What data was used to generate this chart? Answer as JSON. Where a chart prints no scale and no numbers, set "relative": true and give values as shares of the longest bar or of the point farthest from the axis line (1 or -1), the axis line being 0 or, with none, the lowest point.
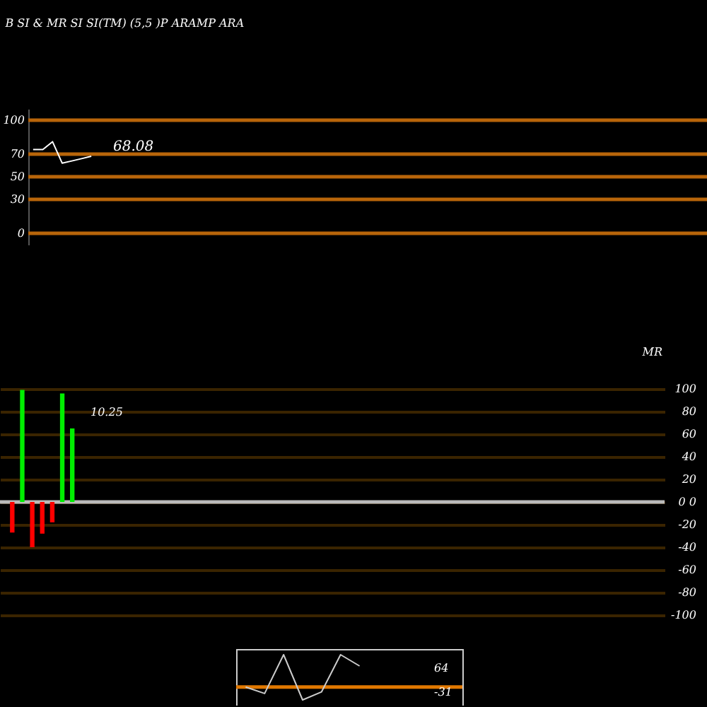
{
  "chart_data": [
    {
      "type": "line",
      "title": "B SI & MR SI SI(TM) (5,5 )P ARAMP ARA",
      "categories": [
        null,
        null,
        null,
        null,
        null,
        null,
        null,
        null,
        null,
        null,
        null,
        null,
        null,
        null,
        null,
        null,
        null,
        null,
        null,
        null,
        null,
        null,
        null,
        null,
        null,
        null,
        null,
        null,
        null,
        null,
        null,
        null,
        null,
        null,
        null,
        null,
        null,
        null,
        null,
        null,
        null,
        null,
        null,
        null,
        null,
        null,
        null,
        null,
        null,
        null,
        null,
        null,
        null,
        null,
        null,
        null,
        null,
        null,
        null,
        null,
        null,
        null,
        null,
        null,
        null,
        null,
        null,
        null,
        null,
        null
      ],
      "series": [
        {
          "color": "#ffffff",
          "values": [
            74,
            74,
            81,
            62,
            64,
            66,
            68.08,
            null,
            null,
            null,
            null,
            null,
            null,
            null,
            null,
            null,
            null,
            null,
            null,
            null,
            null,
            null,
            null,
            null,
            null,
            null,
            null,
            null,
            null,
            null,
            null,
            null,
            null,
            null,
            null,
            null,
            null,
            null,
            null,
            null,
            null,
            null,
            null,
            null,
            null,
            null,
            null,
            null,
            null,
            null,
            null,
            null,
            null,
            null,
            null,
            null,
            null,
            null,
            null,
            null,
            null,
            null,
            null,
            null,
            null,
            null,
            null,
            null,
            null,
            null
          ]
        }
      ],
      "ylim": [
        -10,
        110
      ],
      "yticks": [
        0,
        30,
        50,
        70,
        100
      ],
      "tick_labels": "y",
      "ref_lines": [
        {
          "axis": "y",
          "value": 100,
          "color": "#b8650a"
        },
        {
          "axis": "y",
          "value": 70,
          "color": "#b8650a"
        },
        {
          "axis": "y",
          "value": 50,
          "color": "#b8650a"
        },
        {
          "axis": "y",
          "value": 30,
          "color": "#b8650a"
        },
        {
          "axis": "y",
          "value": 0,
          "color": "#b8650a"
        }
      ],
      "annotations": [
        {
          "text": "68.08",
          "y": 68.08
        }
      ]
    },
    {
      "type": "bar",
      "ylabel": "MR",
      "categories": [
        null,
        null,
        null,
        null,
        null,
        null,
        null,
        null,
        null,
        null,
        null,
        null,
        null,
        null,
        null,
        null,
        null,
        null,
        null,
        null,
        null,
        null,
        null,
        null,
        null,
        null,
        null,
        null,
        null,
        null,
        null,
        null,
        null,
        null,
        null,
        null,
        null,
        null,
        null,
        null,
        null,
        null,
        null,
        null,
        null,
        null,
        null,
        null,
        null,
        null,
        null,
        null,
        null,
        null,
        null,
        null,
        null,
        null,
        null,
        null,
        null,
        null,
        null,
        null,
        null,
        null,
        null
      ],
      "series": [
        {
          "color": "#ff0000",
          "values": [
            null,
            -27,
            null,
            -40,
            -28,
            -18,
            null,
            null,
            null,
            null,
            null,
            null,
            null,
            null,
            null,
            null,
            null,
            null,
            null,
            null,
            null,
            null,
            null,
            null,
            null,
            null,
            null,
            null,
            null,
            null,
            null,
            null,
            null,
            null,
            null,
            null,
            null,
            null,
            null,
            null,
            null,
            null,
            null,
            null,
            null,
            null,
            null,
            null,
            null,
            null,
            null,
            null,
            null,
            null,
            null,
            null,
            null,
            null,
            null,
            null,
            null,
            null,
            null,
            null,
            null,
            null,
            null
          ]
        },
        {
          "color": "#00ee00",
          "values": [
            null,
            null,
            99,
            null,
            null,
            null,
            96,
            65,
            null,
            null,
            null,
            null,
            null,
            null,
            null,
            null,
            null,
            null,
            null,
            null,
            null,
            null,
            null,
            null,
            null,
            null,
            null,
            null,
            null,
            null,
            null,
            null,
            null,
            null,
            null,
            null,
            null,
            null,
            null,
            null,
            null,
            null,
            null,
            null,
            null,
            null,
            null,
            null,
            null,
            null,
            null,
            null,
            null,
            null,
            null,
            null,
            null,
            null,
            null,
            null,
            null,
            null,
            null,
            null,
            null,
            null,
            null
          ]
        }
      ],
      "ylim": [
        -100,
        100
      ],
      "yticks": [
        -100,
        -80,
        -60,
        -40,
        -20,
        {
          "value": 0,
          "label": "0  0"
        },
        20,
        40,
        60,
        80,
        100
      ],
      "tick_labels": "y",
      "grid": "y",
      "ref_lines": [
        {
          "axis": "y",
          "value": 0,
          "color": "#bbbbbb"
        }
      ],
      "annotations": [
        "10.25"
      ]
    },
    {
      "type": "line",
      "relative": true,
      "tick_labels": false,
      "categories": [
        null,
        null,
        null,
        null,
        null,
        null,
        null
      ],
      "series": [
        {
          "color": "#cccccc",
          "values": [
            0,
            -0.2,
            1,
            -0.4,
            -0.15,
            1,
            0.65
          ]
        }
      ],
      "ref_lines": [
        {
          "axis": "y",
          "value": 0,
          "color": "#e07800"
        }
      ],
      "annotations": [
        "64",
        "-31"
      ]
    }
  ]
}
